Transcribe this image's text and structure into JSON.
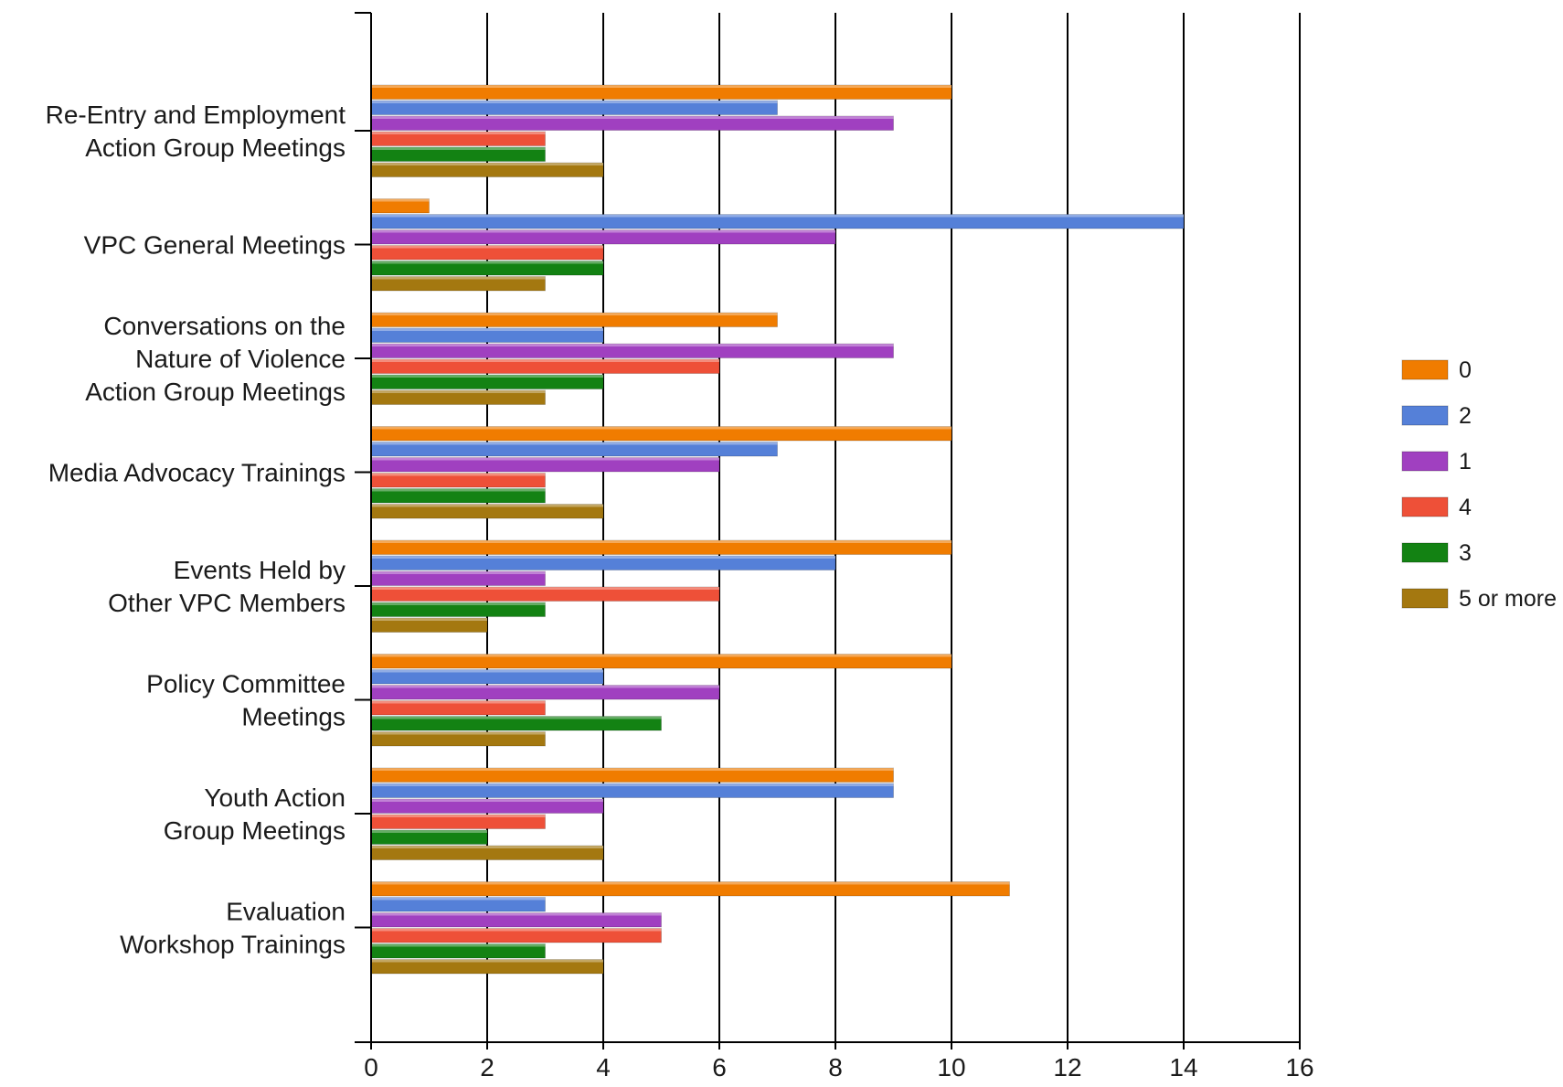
{
  "chart_data": {
    "type": "bar",
    "orientation": "horizontal",
    "title": "",
    "xlabel": "",
    "ylabel": "",
    "xlim": [
      0,
      16
    ],
    "x_ticks": [
      "0",
      "2",
      "4",
      "6",
      "8",
      "10",
      "12",
      "14",
      "16"
    ],
    "grid": "vertical",
    "legend_position": "right",
    "categories": [
      [
        "Re-Entry and Employment",
        "Action Group Meetings"
      ],
      [
        "VPC General Meetings"
      ],
      [
        "Conversations on the",
        "Nature of Violence",
        "Action Group Meetings"
      ],
      [
        "Media Advocacy Trainings"
      ],
      [
        "Events Held by",
        "Other VPC Members"
      ],
      [
        "Policy Committee",
        "Meetings"
      ],
      [
        "Youth Action",
        "Group Meetings"
      ],
      [
        "Evaluation",
        "Workshop Trainings"
      ]
    ],
    "series": [
      {
        "name": "0",
        "color": "#F07C00",
        "values": [
          10,
          1,
          7,
          10,
          10,
          10,
          9,
          11
        ]
      },
      {
        "name": "2",
        "color": "#5580D8",
        "values": [
          7,
          14,
          4,
          7,
          8,
          4,
          9,
          3
        ]
      },
      {
        "name": "1",
        "color": "#A040C0",
        "values": [
          9,
          8,
          9,
          6,
          3,
          6,
          4,
          5
        ]
      },
      {
        "name": "4",
        "color": "#EE5038",
        "values": [
          3,
          4,
          6,
          3,
          6,
          3,
          3,
          5
        ]
      },
      {
        "name": "3",
        "color": "#138213",
        "values": [
          3,
          4,
          4,
          3,
          3,
          5,
          2,
          3
        ]
      },
      {
        "name": "5 or more",
        "color": "#A47810",
        "values": [
          4,
          3,
          3,
          4,
          2,
          3,
          4,
          4
        ]
      }
    ]
  }
}
